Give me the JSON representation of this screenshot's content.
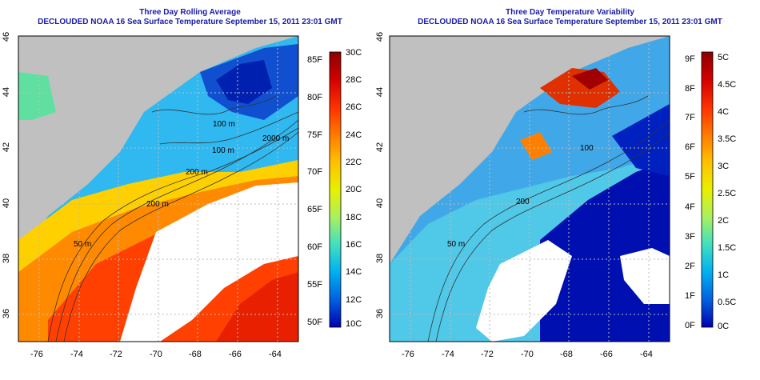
{
  "panels": [
    {
      "title": "Three Day Rolling Average",
      "subtitle": "DECLOUDED NOAA 16 Sea Surface Temperature September 15, 2011 23:01 GMT",
      "lon_ticks": [
        "-76",
        "-74",
        "-72",
        "-70",
        "-68",
        "-66",
        "-64"
      ],
      "lat_ticks": [
        "46",
        "44",
        "42",
        "40",
        "38",
        "36"
      ],
      "contour_labels": [
        "100 m",
        "100 m",
        "200 m",
        "2000 m",
        "200 m",
        "50 m"
      ],
      "colorbar": {
        "left_labels": [
          "85F",
          "80F",
          "75F",
          "70F",
          "65F",
          "60F",
          "55F",
          "50F"
        ],
        "right_labels": [
          "30C",
          "28C",
          "26C",
          "24C",
          "22C",
          "20C",
          "18C",
          "16C",
          "14C",
          "12C",
          "10C"
        ],
        "colors": [
          "#8b0000",
          "#d40000",
          "#ff3000",
          "#ff7a00",
          "#ffc000",
          "#e8f000",
          "#a8f060",
          "#40e0c0",
          "#00b0f0",
          "#0060e0",
          "#0000b0"
        ]
      }
    },
    {
      "title": "Three Day Temperature Variability",
      "subtitle": "DECLOUDED NOAA 16 Sea Surface Temperature September 15, 2011 23:01 GMT",
      "lon_ticks": [
        "-76",
        "-74",
        "-72",
        "-70",
        "-68",
        "-66",
        "-64"
      ],
      "lat_ticks": [
        "46",
        "44",
        "42",
        "40",
        "38",
        "36"
      ],
      "contour_labels": [
        "100",
        "200",
        "50 m"
      ],
      "colorbar": {
        "left_labels": [
          "9F",
          "8F",
          "7F",
          "6F",
          "5F",
          "4F",
          "3F",
          "2F",
          "1F",
          "0F"
        ],
        "right_labels": [
          "5C",
          "4.5C",
          "4C",
          "3.5C",
          "3C",
          "2.5C",
          "2C",
          "1.5C",
          "1C",
          "0.5C",
          "0C"
        ],
        "colors": [
          "#8b0000",
          "#d40000",
          "#ff3000",
          "#ff7a00",
          "#ffc000",
          "#e8f000",
          "#a8f060",
          "#40e0c0",
          "#00b0f0",
          "#0060e0",
          "#0000b0"
        ]
      }
    }
  ],
  "map_colors": {
    "land": "#c0c0c0",
    "no_data": "#ffffff",
    "grid": "#bbbbbb",
    "contour": "#333333"
  }
}
